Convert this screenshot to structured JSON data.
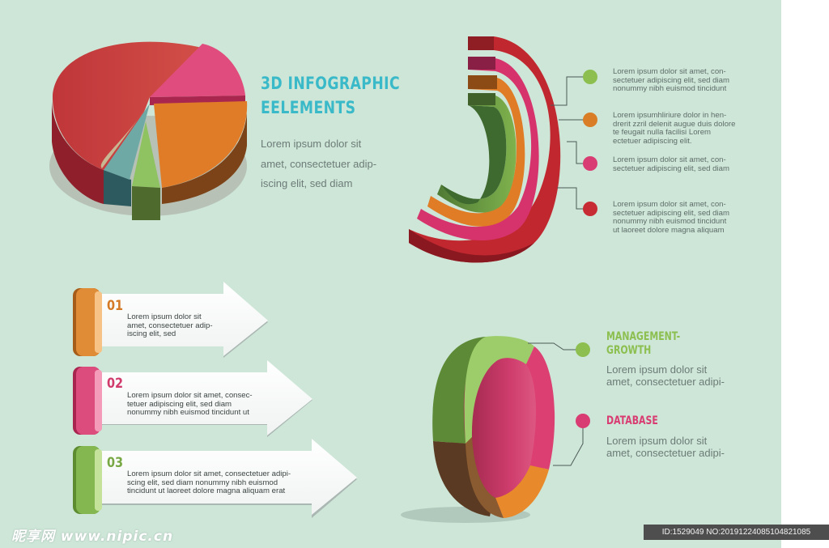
{
  "heading": {
    "line1": "3D INFOGRAPHIC",
    "line2": "EELEMENTS"
  },
  "intro": [
    "Lorem ipsum dolor sit",
    "amet, consectetuer adip-",
    "iscing elit, sed diam"
  ],
  "ring_notes": [
    {
      "lines": [
        "Lorem ipsum dolor sit amet, con-",
        "sectetuer adipiscing elit, sed diam",
        "nonummy nibh euismod tincidunt"
      ],
      "color": "#8cbf4f"
    },
    {
      "lines": [
        "Lorem ipsumhliriure dolor in hen-",
        "drerit zzril delenit augue duis dolore",
        "te feugait nulla facilisi Lorem",
        "ectetuer adipiscing elit."
      ],
      "color": "#d97d26"
    },
    {
      "lines": [
        "Lorem ipsum dolor sit amet, con-",
        "sectetuer adipiscing elit, sed diam"
      ],
      "color": "#d93c72"
    },
    {
      "lines": [
        "Lorem ipsum dolor sit amet, con-",
        "sectetuer adipiscing elit, sed diam",
        "nonummy nibh euismod tincidunt",
        "ut laoreet dolore magna aliquam"
      ],
      "color": "#c72b33"
    }
  ],
  "steps": [
    {
      "num": "01",
      "color": "#d47a26",
      "lines": [
        "Lorem ipsum dolor sit",
        "amet, consectetuer adip-",
        "iscing elit, sed"
      ]
    },
    {
      "num": "02",
      "color": "#d03b6c",
      "lines": [
        "Lorem ipsum dolor sit amet, consec-",
        "tetuer adipiscing elit, sed diam",
        "nonummy nibh euismod tincidunt ut"
      ]
    },
    {
      "num": "03",
      "color": "#78a844",
      "lines": [
        "Lorem ipsum dolor sit amet, consectetuer adipi-",
        "scing elit, sed diam nonummy nibh euismod",
        "tincidunt ut laoreet dolore magna aliquam erat"
      ]
    }
  ],
  "management": {
    "title_line1": "MANAGEMENT-",
    "title_line2": "GROWTH",
    "text": [
      "Lorem ipsum dolor sit",
      "amet, consectetuer adipi-"
    ],
    "color": "#8cbf4f"
  },
  "database": {
    "title": "DATABASE",
    "text": [
      "Lorem ipsum dolor sit",
      "amet, consectetuer adipi-"
    ],
    "color": "#d93c72"
  },
  "watermark": "昵享网 www.nipic.cn",
  "image_id": "ID:1529049 NO:20191224085104821085"
}
